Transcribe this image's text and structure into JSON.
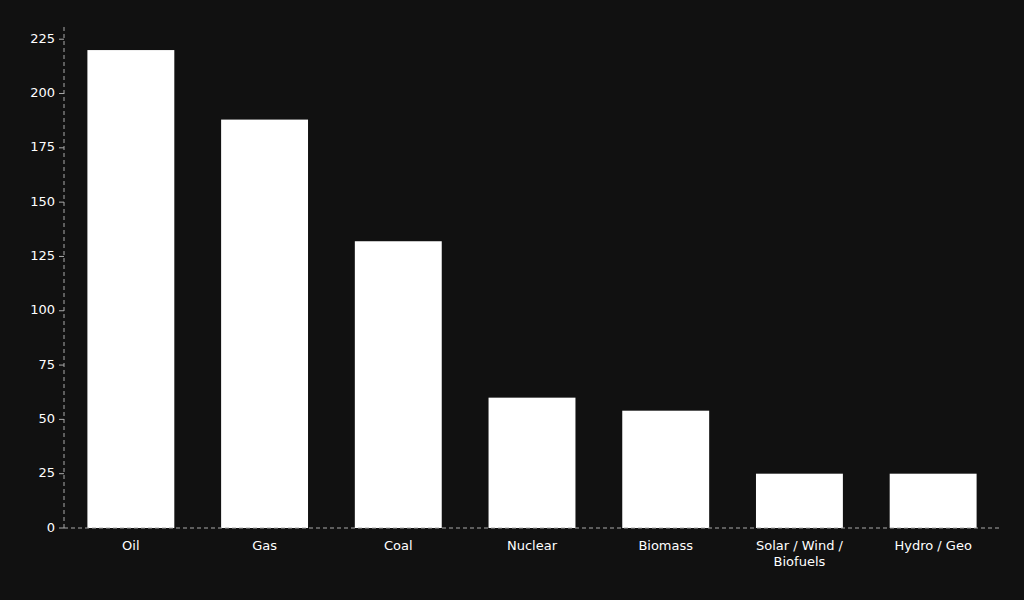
{
  "chart_data": {
    "type": "bar",
    "categories": [
      "Oil",
      "Gas",
      "Coal",
      "Nuclear",
      "Biomass",
      "Solar / Wind /\nBiofuels",
      "Hydro / Geo"
    ],
    "values": [
      220,
      188,
      132,
      60,
      54,
      25,
      25
    ],
    "color": "#ffffff",
    "ylim": [
      0,
      232
    ],
    "yticks": [
      0,
      25,
      50,
      75,
      100,
      125,
      150,
      175,
      200,
      225
    ],
    "grid": false
  }
}
